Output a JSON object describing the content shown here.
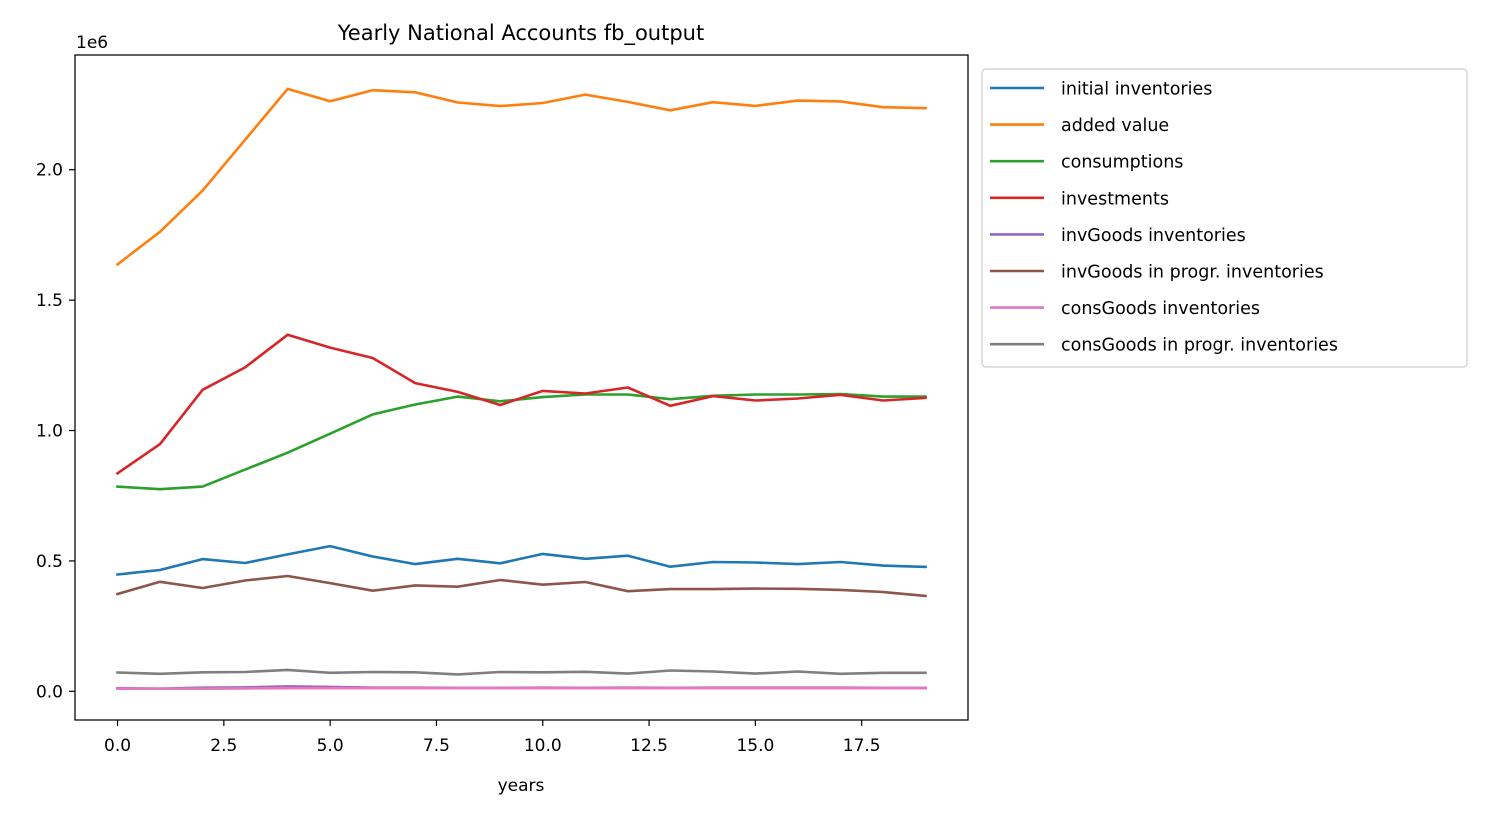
{
  "chart_data": {
    "type": "line",
    "title": "Yearly National Accounts fb_output",
    "xlabel": "years",
    "ylabel": "",
    "y_scale_label": "1e6",
    "xlim": [
      -1,
      20
    ],
    "ylim": [
      -110000,
      2440000
    ],
    "x_ticks": [
      0,
      2.5,
      5,
      7.5,
      10,
      12.5,
      15,
      17.5
    ],
    "x_tick_labels": [
      "0.0",
      "2.5",
      "5.0",
      "7.5",
      "10.0",
      "12.5",
      "15.0",
      "17.5"
    ],
    "y_ticks": [
      0,
      500000,
      1000000,
      1500000,
      2000000
    ],
    "y_tick_labels": [
      "0.0",
      "0.5",
      "1.0",
      "1.5",
      "2.0"
    ],
    "grid": false,
    "legend_position": "outside-right-top",
    "x": [
      0,
      1,
      2,
      3,
      4,
      5,
      6,
      7,
      8,
      9,
      10,
      11,
      12,
      13,
      14,
      15,
      16,
      17,
      18,
      19
    ],
    "series": [
      {
        "name": "initial inventories",
        "color": "#1f77b4",
        "values": [
          448000,
          465000,
          507000,
          492000,
          525000,
          557000,
          517000,
          488000,
          508000,
          491000,
          527000,
          508000,
          520000,
          478000,
          496000,
          494000,
          488000,
          496000,
          482000,
          477000
        ]
      },
      {
        "name": "added value",
        "color": "#ff7f0e",
        "values": [
          1637000,
          1762000,
          1920000,
          2115000,
          2310000,
          2263000,
          2305000,
          2297000,
          2258000,
          2244000,
          2256000,
          2288000,
          2260000,
          2228000,
          2259000,
          2245000,
          2265000,
          2262000,
          2240000,
          2236000
        ]
      },
      {
        "name": "consumptions",
        "color": "#2ca02c",
        "values": [
          785000,
          775000,
          785000,
          850000,
          915000,
          988000,
          1062000,
          1100000,
          1130000,
          1112000,
          1128000,
          1138000,
          1138000,
          1120000,
          1133000,
          1138000,
          1138000,
          1140000,
          1130000,
          1130000
        ]
      },
      {
        "name": "investments",
        "color": "#d62728",
        "values": [
          836000,
          948000,
          1156000,
          1242000,
          1367000,
          1318000,
          1278000,
          1182000,
          1148000,
          1098000,
          1152000,
          1142000,
          1165000,
          1095000,
          1132000,
          1115000,
          1123000,
          1137000,
          1115000,
          1125000
        ]
      },
      {
        "name": "invGoods inventories",
        "color": "#9467bd",
        "values": [
          12000,
          10000,
          14000,
          15000,
          19000,
          17000,
          14000,
          14000,
          13000,
          13000,
          14000,
          13000,
          14000,
          13000,
          14000,
          14000,
          14000,
          14000,
          13000,
          13000
        ]
      },
      {
        "name": "invGoods in progr. inventories",
        "color": "#8c564b",
        "values": [
          373000,
          420000,
          396000,
          425000,
          442000,
          415000,
          386000,
          406000,
          401000,
          427000,
          409000,
          419000,
          384000,
          392000,
          392000,
          394000,
          393000,
          389000,
          381000,
          366000
        ]
      },
      {
        "name": "consGoods inventories",
        "color": "#e377c2",
        "values": [
          10000,
          10000,
          10000,
          11000,
          12000,
          12000,
          12000,
          12000,
          12000,
          12000,
          12000,
          12000,
          12000,
          12000,
          12000,
          12000,
          12000,
          12000,
          12000,
          12000
        ]
      },
      {
        "name": "consGoods in progr. inventories",
        "color": "#7f7f7f",
        "values": [
          72000,
          67000,
          73000,
          74000,
          82000,
          71000,
          74000,
          73000,
          65000,
          74000,
          73000,
          75000,
          68000,
          80000,
          76000,
          68000,
          76000,
          67000,
          71000,
          71000
        ]
      }
    ]
  }
}
